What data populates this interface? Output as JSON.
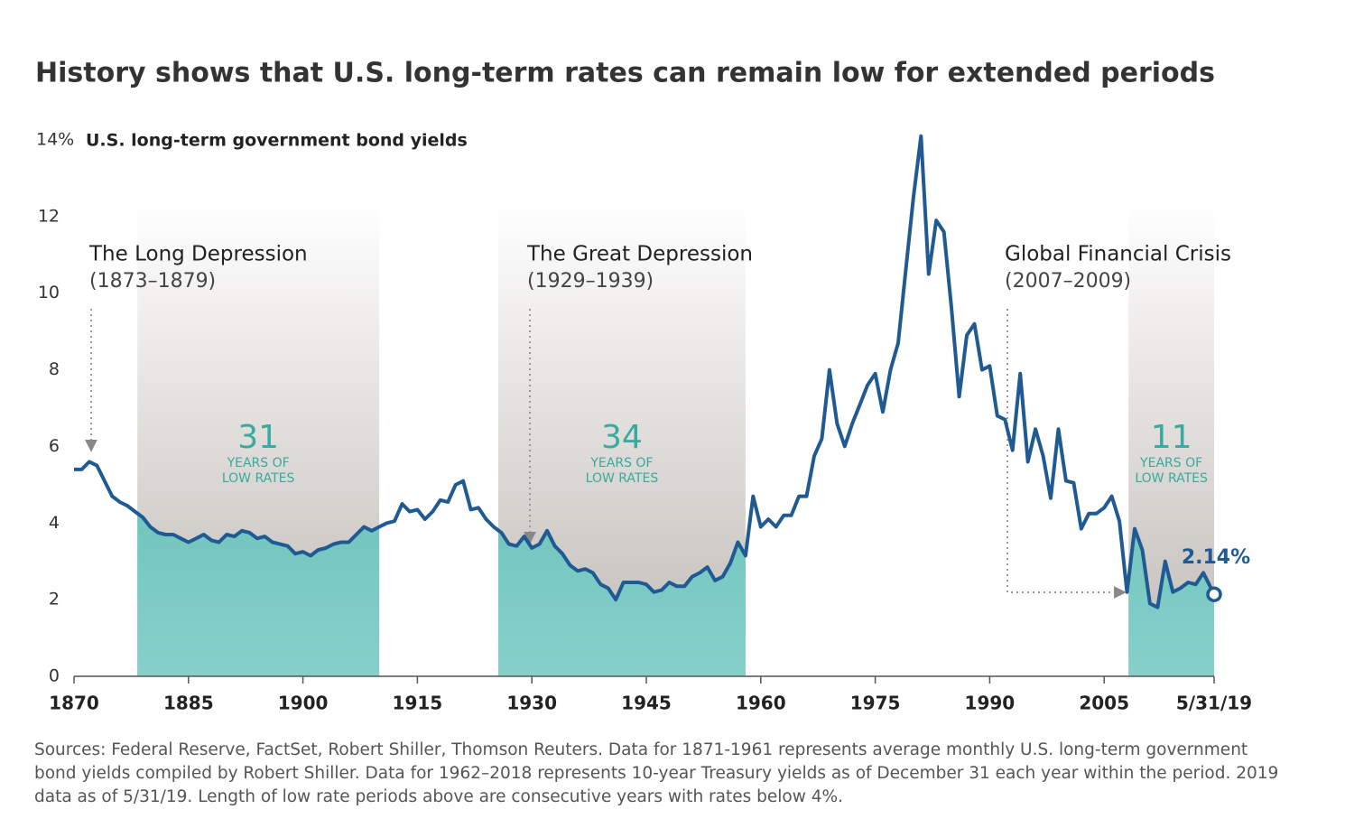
{
  "chart_data": {
    "type": "line",
    "title": "History shows that U.S. long-term rates can remain low for extended periods",
    "y_label": "U.S. long-term government bond yields",
    "x": [
      1870,
      1871,
      1872,
      1873,
      1874,
      1875,
      1876,
      1877,
      1878,
      1879,
      1880,
      1881,
      1882,
      1883,
      1884,
      1885,
      1886,
      1887,
      1888,
      1889,
      1890,
      1891,
      1892,
      1893,
      1894,
      1895,
      1896,
      1897,
      1898,
      1899,
      1900,
      1901,
      1902,
      1903,
      1904,
      1905,
      1906,
      1907,
      1908,
      1909,
      1910,
      1911,
      1912,
      1913,
      1914,
      1915,
      1916,
      1917,
      1918,
      1919,
      1920,
      1921,
      1922,
      1923,
      1924,
      1925,
      1926,
      1927,
      1928,
      1929,
      1930,
      1931,
      1932,
      1933,
      1934,
      1935,
      1936,
      1937,
      1938,
      1939,
      1940,
      1941,
      1942,
      1943,
      1944,
      1945,
      1946,
      1947,
      1948,
      1949,
      1950,
      1951,
      1952,
      1953,
      1954,
      1955,
      1956,
      1957,
      1958,
      1959,
      1960,
      1961,
      1962,
      1963,
      1964,
      1965,
      1966,
      1967,
      1968,
      1969,
      1970,
      1971,
      1972,
      1973,
      1974,
      1975,
      1976,
      1977,
      1978,
      1979,
      1980,
      1981,
      1982,
      1983,
      1984,
      1985,
      1986,
      1987,
      1988,
      1989,
      1990,
      1991,
      1992,
      1993,
      1994,
      1995,
      1996,
      1997,
      1998,
      1999,
      2000,
      2001,
      2002,
      2003,
      2004,
      2005,
      2006,
      2007,
      2008,
      2009,
      2010,
      2011,
      2012,
      2013,
      2014,
      2015,
      2016,
      2017,
      2018,
      2019.41
    ],
    "series": [
      {
        "name": "U.S. long-term government bond yields",
        "color": "#1f5a93",
        "values": [
          5.4,
          5.4,
          5.6,
          5.5,
          5.1,
          4.7,
          4.55,
          4.45,
          4.3,
          4.15,
          3.9,
          3.75,
          3.7,
          3.7,
          3.6,
          3.5,
          3.6,
          3.7,
          3.55,
          3.5,
          3.7,
          3.65,
          3.8,
          3.75,
          3.6,
          3.65,
          3.5,
          3.45,
          3.4,
          3.2,
          3.25,
          3.15,
          3.3,
          3.35,
          3.45,
          3.5,
          3.5,
          3.7,
          3.9,
          3.8,
          3.9,
          4.0,
          4.05,
          4.5,
          4.3,
          4.35,
          4.1,
          4.3,
          4.6,
          4.55,
          5.0,
          5.1,
          4.35,
          4.4,
          4.1,
          3.9,
          3.75,
          3.45,
          3.4,
          3.65,
          3.35,
          3.45,
          3.8,
          3.4,
          3.2,
          2.9,
          2.75,
          2.8,
          2.7,
          2.4,
          2.3,
          2.0,
          2.45,
          2.45,
          2.45,
          2.4,
          2.2,
          2.25,
          2.45,
          2.35,
          2.35,
          2.6,
          2.7,
          2.85,
          2.5,
          2.6,
          2.95,
          3.5,
          3.15,
          4.7,
          3.9,
          4.1,
          3.9,
          4.2,
          4.2,
          4.7,
          4.7,
          5.75,
          6.2,
          8.0,
          6.6,
          6.0,
          6.6,
          7.1,
          7.6,
          7.9,
          6.9,
          8.0,
          8.7,
          10.6,
          12.5,
          14.1,
          10.5,
          11.9,
          11.6,
          9.6,
          7.3,
          8.9,
          9.2,
          8.0,
          8.1,
          6.8,
          6.7,
          5.9,
          7.9,
          5.6,
          6.45,
          5.75,
          4.65,
          6.45,
          5.1,
          5.05,
          3.85,
          4.25,
          4.25,
          4.4,
          4.7,
          4.05,
          2.2,
          3.85,
          3.3,
          1.9,
          1.8,
          3.0,
          2.2,
          2.3,
          2.45,
          2.4,
          2.7,
          2.14
        ]
      }
    ],
    "end_label": "2.14%",
    "xlim": [
      1870,
      2019.41
    ],
    "xticks": [
      1870,
      1885,
      1900,
      1915,
      1930,
      1945,
      1960,
      1975,
      1990,
      2005,
      {
        "value": 2019.41,
        "label": "5/31/19"
      }
    ],
    "ylim": [
      0,
      14
    ],
    "yticks": [
      0,
      2,
      4,
      6,
      8,
      10,
      12,
      {
        "value": 14,
        "label": "14%"
      }
    ],
    "grid": false,
    "periods": [
      {
        "start": 1878.3,
        "end": 1910,
        "count": 31,
        "label_lines": [
          "YEARS OF",
          "LOW RATES"
        ]
      },
      {
        "start": 1925.6,
        "end": 1958,
        "count": 34,
        "label_lines": [
          "YEARS OF",
          "LOW RATES"
        ]
      },
      {
        "start": 2008.2,
        "end": 2019.41,
        "count": 11,
        "label_lines": [
          "YEARS OF",
          "LOW RATES"
        ]
      }
    ],
    "annotations": [
      {
        "title": "The Long Depression",
        "period": "(1873–1879)"
      },
      {
        "title": "The Great Depression",
        "period": "(1929–1939)"
      },
      {
        "title": "Global Financial Crisis",
        "period": "(2007–2009)"
      }
    ],
    "source": "Sources: Federal Reserve, FactSet, Robert Shiller, Thomson Reuters. Data for 1871-1961 represents average monthly U.S. long-term government bond yields compiled by Robert Shiller. Data for 1962–2018 represents 10-year Treasury yields as of December 31 each year within the period. 2019 data as of 5/31/19. Length of low rate periods above are consecutive years with rates below 4%."
  }
}
